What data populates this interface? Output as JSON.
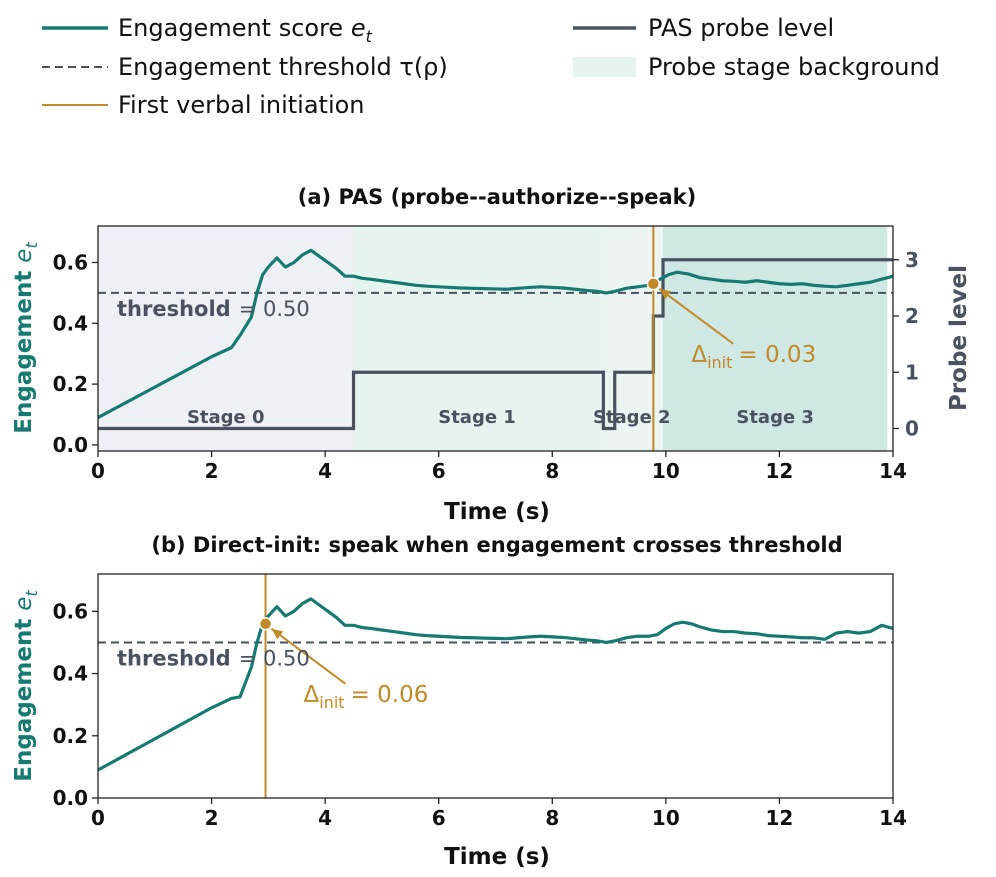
{
  "colors": {
    "engagement": "#177a72",
    "threshold": "#4a5260",
    "initiation": "#c08a2a",
    "probe": "#4a5260",
    "stage0": "#edf1f5",
    "stage1": "#e6f4ef",
    "stage2": "#ecf4f1",
    "stage3": "#cfe8e4"
  },
  "legend": {
    "engagement": "Engagement score ",
    "engagement_sym": "e",
    "engagement_sub": "t",
    "threshold": "Engagement threshold τ(ρ)",
    "initiation": "First verbal initiation",
    "probe": "PAS probe level",
    "stage_bg": "Probe stage background"
  },
  "chart_data": [
    {
      "type": "line",
      "title": "(a) PAS (probe--authorize--speak)",
      "xlabel": "Time (s)",
      "ylabel": "Engagement e_t",
      "ylabel_main": "Engagement ",
      "ylabel_sym": "e",
      "ylabel_sub": "t",
      "ylabel_right": "Probe level",
      "xlim": [
        0,
        14
      ],
      "ylim": [
        -0.02,
        0.72
      ],
      "ylim_right": [
        -0.4,
        3.6
      ],
      "xticks": [
        0,
        2,
        4,
        6,
        8,
        10,
        12,
        14
      ],
      "yticks": [
        0.0,
        0.2,
        0.4,
        0.6
      ],
      "ytick_labels": [
        "0.0",
        "0.2",
        "0.4",
        "0.6"
      ],
      "yticks_right": [
        0,
        1,
        2,
        3
      ],
      "threshold": 0.5,
      "threshold_label_bold": "threshold",
      "threshold_label_rest": "= 0.50",
      "initiation_time": 9.78,
      "initiation_value": 0.53,
      "annotation_main": "Δ",
      "annotation_sub": "init",
      "annotation_val": "= 0.03",
      "stages": [
        {
          "label": "Stage 0",
          "start": 0.0,
          "end": 4.5
        },
        {
          "label": "Stage 1",
          "start": 4.5,
          "end": 8.85
        },
        {
          "label": "Stage 2",
          "start": 8.85,
          "end": 9.95
        },
        {
          "label": "Stage 3",
          "start": 9.95,
          "end": 13.9
        }
      ],
      "series": [
        {
          "name": "Engagement score e_t",
          "x": [
            0.0,
            0.4,
            0.8,
            1.2,
            1.6,
            2.0,
            2.35,
            2.5,
            2.7,
            2.8,
            2.9,
            3.0,
            3.15,
            3.3,
            3.45,
            3.6,
            3.75,
            3.9,
            4.05,
            4.2,
            4.35,
            4.5,
            4.65,
            4.8,
            5.0,
            5.2,
            5.4,
            5.6,
            5.8,
            6.0,
            6.2,
            6.4,
            6.6,
            6.8,
            7.0,
            7.2,
            7.4,
            7.6,
            7.8,
            8.0,
            8.2,
            8.4,
            8.6,
            8.8,
            8.95,
            9.1,
            9.3,
            9.5,
            9.7,
            9.78,
            9.9,
            10.05,
            10.2,
            10.4,
            10.6,
            10.8,
            11.0,
            11.2,
            11.4,
            11.6,
            11.8,
            12.0,
            12.2,
            12.4,
            12.6,
            12.8,
            13.0,
            13.2,
            13.4,
            13.6,
            13.8,
            14.0
          ],
          "y": [
            0.09,
            0.13,
            0.17,
            0.21,
            0.25,
            0.29,
            0.32,
            0.36,
            0.42,
            0.5,
            0.56,
            0.585,
            0.615,
            0.585,
            0.6,
            0.625,
            0.64,
            0.62,
            0.6,
            0.58,
            0.555,
            0.555,
            0.548,
            0.545,
            0.54,
            0.535,
            0.53,
            0.525,
            0.522,
            0.52,
            0.518,
            0.516,
            0.515,
            0.514,
            0.513,
            0.512,
            0.515,
            0.518,
            0.52,
            0.518,
            0.516,
            0.512,
            0.508,
            0.505,
            0.5,
            0.505,
            0.515,
            0.52,
            0.525,
            0.53,
            0.545,
            0.56,
            0.568,
            0.562,
            0.55,
            0.545,
            0.54,
            0.538,
            0.535,
            0.54,
            0.535,
            0.53,
            0.528,
            0.53,
            0.525,
            0.522,
            0.52,
            0.525,
            0.53,
            0.535,
            0.545,
            0.555
          ]
        },
        {
          "name": "PAS probe level",
          "axis": "right",
          "x": [
            0.0,
            4.5,
            4.5,
            8.9,
            8.9,
            9.1,
            9.1,
            9.78,
            9.78,
            9.95,
            9.95,
            14.0
          ],
          "y": [
            0.0,
            0.0,
            1.0,
            1.0,
            0.0,
            0.0,
            1.0,
            1.0,
            2.0,
            2.0,
            3.0,
            3.0
          ]
        }
      ]
    },
    {
      "type": "line",
      "title": "(b) Direct-init: speak when engagement crosses threshold",
      "xlabel": "Time (s)",
      "ylabel": "Engagement e_t",
      "ylabel_main": "Engagement ",
      "ylabel_sym": "e",
      "ylabel_sub": "t",
      "xlim": [
        0,
        14
      ],
      "ylim": [
        0.0,
        0.72
      ],
      "xticks": [
        0,
        2,
        4,
        6,
        8,
        10,
        12,
        14
      ],
      "yticks": [
        0.0,
        0.2,
        0.4,
        0.6
      ],
      "ytick_labels": [
        "0.0",
        "0.2",
        "0.4",
        "0.6"
      ],
      "threshold": 0.5,
      "threshold_label_bold": "threshold",
      "threshold_label_rest": "= 0.50",
      "initiation_time": 2.95,
      "initiation_value": 0.56,
      "annotation_main": "Δ",
      "annotation_sub": "init",
      "annotation_val": "= 0.06",
      "series": [
        {
          "name": "Engagement score e_t",
          "x": [
            0.0,
            0.4,
            0.8,
            1.2,
            1.6,
            2.0,
            2.35,
            2.5,
            2.7,
            2.8,
            2.9,
            3.0,
            3.15,
            3.3,
            3.45,
            3.6,
            3.75,
            3.9,
            4.05,
            4.2,
            4.35,
            4.5,
            4.65,
            4.8,
            5.0,
            5.2,
            5.4,
            5.6,
            5.8,
            6.0,
            6.2,
            6.4,
            6.6,
            6.8,
            7.0,
            7.2,
            7.4,
            7.6,
            7.8,
            8.0,
            8.2,
            8.4,
            8.6,
            8.8,
            8.95,
            9.1,
            9.3,
            9.5,
            9.7,
            9.85,
            10.0,
            10.15,
            10.3,
            10.45,
            10.6,
            10.8,
            11.0,
            11.2,
            11.4,
            11.6,
            11.8,
            12.0,
            12.2,
            12.4,
            12.6,
            12.8,
            13.0,
            13.2,
            13.4,
            13.6,
            13.8,
            14.0
          ],
          "y": [
            0.09,
            0.13,
            0.17,
            0.21,
            0.25,
            0.29,
            0.32,
            0.325,
            0.42,
            0.5,
            0.56,
            0.585,
            0.615,
            0.585,
            0.6,
            0.625,
            0.64,
            0.62,
            0.6,
            0.58,
            0.555,
            0.555,
            0.548,
            0.545,
            0.54,
            0.535,
            0.53,
            0.525,
            0.522,
            0.52,
            0.518,
            0.516,
            0.515,
            0.514,
            0.513,
            0.512,
            0.515,
            0.518,
            0.52,
            0.518,
            0.516,
            0.512,
            0.508,
            0.505,
            0.5,
            0.505,
            0.515,
            0.52,
            0.52,
            0.525,
            0.545,
            0.56,
            0.565,
            0.56,
            0.55,
            0.54,
            0.535,
            0.535,
            0.53,
            0.528,
            0.522,
            0.52,
            0.518,
            0.515,
            0.515,
            0.51,
            0.53,
            0.535,
            0.53,
            0.535,
            0.555,
            0.545
          ]
        }
      ]
    }
  ]
}
